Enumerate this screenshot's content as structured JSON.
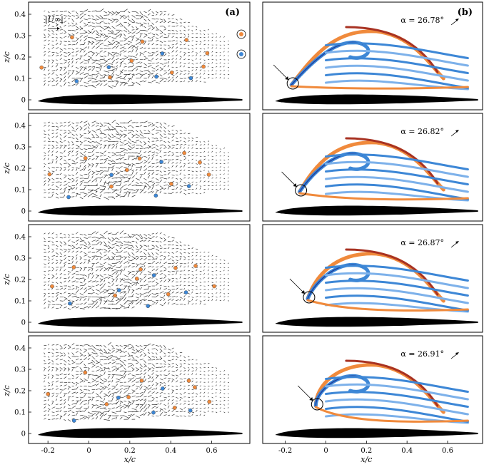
{
  "figure": {
    "panel_a_label": "(a)",
    "panel_b_label": "(b)",
    "freestream_label": "|U∞|",
    "x_label": "x/c",
    "z_label": "z/c",
    "x_ticks": [
      "-0.2",
      "0",
      "0.2",
      "0.4",
      "0.6"
    ],
    "z_ticks": [
      "0",
      "0.1",
      "0.2",
      "0.3",
      "0.4"
    ],
    "alphas": [
      "α = 26.78°",
      "α = 26.82°",
      "α = 26.87°",
      "α = 26.91°"
    ],
    "colors": {
      "orange": "#f08a3c",
      "blue": "#3d87d6",
      "dark_red": "#a83222",
      "navy": "#1f3f9e",
      "airfoil": "#000000",
      "vector": "#1a1a1a"
    }
  }
}
